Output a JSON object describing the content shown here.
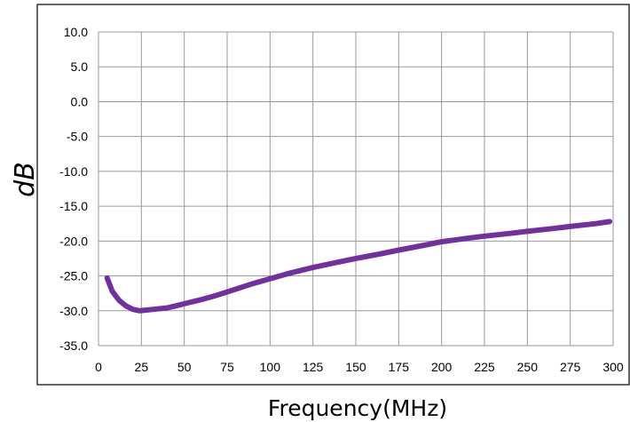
{
  "chart_data": {
    "type": "line",
    "title": "",
    "xlabel": "Frequency(MHz)",
    "ylabel": "dB",
    "xlim": [
      0,
      300
    ],
    "ylim": [
      -35,
      10
    ],
    "grid": true,
    "x_ticks": [
      0,
      25,
      50,
      75,
      100,
      125,
      150,
      175,
      200,
      225,
      250,
      275,
      300
    ],
    "x_tick_labels": [
      "0",
      "25",
      "50",
      "75",
      "100",
      "125",
      "150",
      "175",
      "200",
      "225",
      "250",
      "275",
      "300"
    ],
    "y_ticks": [
      10,
      5,
      0,
      -5,
      -10,
      -15,
      -20,
      -25,
      -30,
      -35
    ],
    "y_tick_labels": [
      "10.0",
      "5.0",
      "0.0",
      "-5.0",
      "-10.0",
      "-15.0",
      "-20.0",
      "-25.0",
      "-30.0",
      "-35.0"
    ],
    "series": [
      {
        "color": "#7030a0",
        "x": [
          5,
          8,
          12,
          16,
          20,
          24,
          28,
          32,
          36,
          40,
          45,
          50,
          60,
          70,
          80,
          90,
          100,
          110,
          125,
          140,
          150,
          165,
          175,
          190,
          200,
          215,
          225,
          240,
          250,
          265,
          275,
          290,
          298
        ],
        "y": [
          -25.3,
          -27.2,
          -28.5,
          -29.3,
          -29.8,
          -30.0,
          -29.9,
          -29.8,
          -29.7,
          -29.6,
          -29.3,
          -29.0,
          -28.4,
          -27.7,
          -26.9,
          -26.1,
          -25.4,
          -24.7,
          -23.8,
          -23.0,
          -22.5,
          -21.8,
          -21.3,
          -20.6,
          -20.1,
          -19.6,
          -19.3,
          -18.9,
          -18.6,
          -18.2,
          -17.9,
          -17.5,
          -17.2
        ]
      }
    ]
  }
}
